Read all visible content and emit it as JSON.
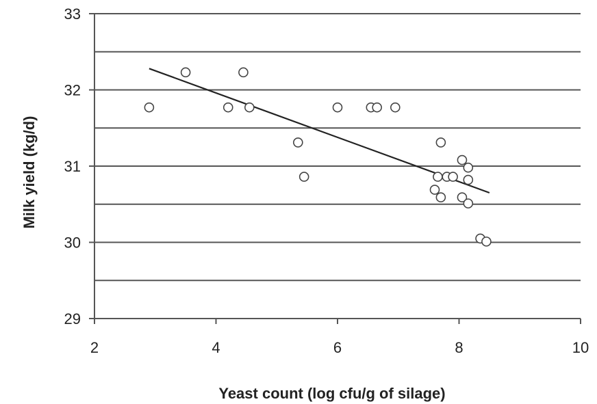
{
  "chart_data": {
    "type": "scatter",
    "title": "",
    "xlabel": "Yeast count (log  cfu/g  of silage)",
    "ylabel": "Milk yield (kg/d)",
    "xlim": [
      2,
      10
    ],
    "ylim": [
      29,
      33
    ],
    "x_ticks": [
      "2",
      "4",
      "6",
      "8",
      "10"
    ],
    "y_ticks": [
      "29",
      "30",
      "31",
      "32",
      "33"
    ],
    "horizontal_gridlines": [
      29.5,
      30,
      30.5,
      31,
      31.5,
      32,
      32.5,
      33
    ],
    "series": [
      {
        "points": [
          {
            "x": 2.9,
            "y": 31.77
          },
          {
            "x": 3.5,
            "y": 32.23
          },
          {
            "x": 4.2,
            "y": 31.77
          },
          {
            "x": 4.45,
            "y": 32.23
          },
          {
            "x": 4.55,
            "y": 31.77
          },
          {
            "x": 5.35,
            "y": 31.31
          },
          {
            "x": 5.45,
            "y": 30.86
          },
          {
            "x": 6.0,
            "y": 31.77
          },
          {
            "x": 6.55,
            "y": 31.77
          },
          {
            "x": 6.65,
            "y": 31.77
          },
          {
            "x": 6.95,
            "y": 31.77
          },
          {
            "x": 7.6,
            "y": 30.69
          },
          {
            "x": 7.65,
            "y": 30.86
          },
          {
            "x": 7.7,
            "y": 31.31
          },
          {
            "x": 7.7,
            "y": 30.59
          },
          {
            "x": 7.8,
            "y": 30.86
          },
          {
            "x": 7.9,
            "y": 30.86
          },
          {
            "x": 8.05,
            "y": 31.08
          },
          {
            "x": 8.05,
            "y": 30.59
          },
          {
            "x": 8.15,
            "y": 30.98
          },
          {
            "x": 8.15,
            "y": 30.82
          },
          {
            "x": 8.15,
            "y": 30.51
          },
          {
            "x": 8.35,
            "y": 30.05
          },
          {
            "x": 8.45,
            "y": 30.01
          }
        ]
      }
    ],
    "trendline": {
      "x": [
        2.9,
        8.5
      ],
      "y": [
        32.28,
        30.65
      ]
    },
    "grid": "horizontal",
    "legend": "none"
  }
}
